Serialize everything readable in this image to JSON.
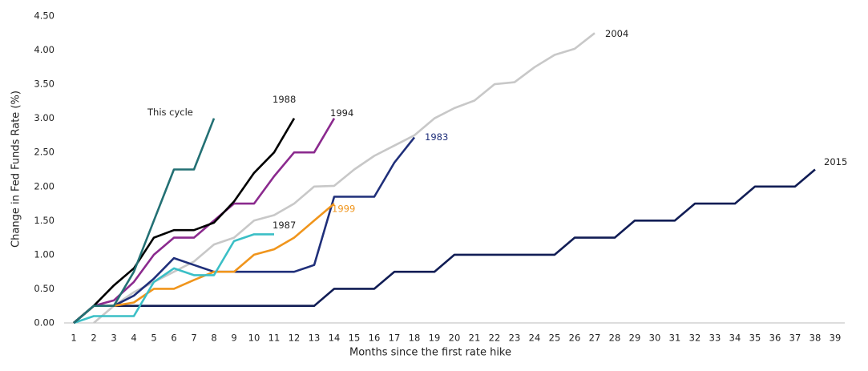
{
  "chart_data": {
    "type": "line",
    "y_label": "Change in Fed Funds Rate (%)",
    "x_label": "Months since the first rate hike",
    "x": [
      1,
      2,
      3,
      4,
      5,
      6,
      7,
      8,
      9,
      10,
      11,
      12,
      13,
      14,
      15,
      16,
      17,
      18,
      19,
      20,
      21,
      22,
      23,
      24,
      25,
      26,
      27,
      28,
      29,
      30,
      31,
      32,
      33,
      34,
      35,
      36,
      37,
      38,
      39
    ],
    "xlim": [
      1,
      39
    ],
    "xticks": [
      1,
      2,
      3,
      4,
      5,
      6,
      7,
      8,
      9,
      10,
      11,
      12,
      13,
      14,
      15,
      16,
      17,
      18,
      19,
      20,
      21,
      22,
      23,
      24,
      25,
      26,
      27,
      28,
      29,
      30,
      31,
      32,
      33,
      34,
      35,
      36,
      37,
      38,
      39
    ],
    "ylim": [
      0,
      4.5
    ],
    "yticks": [
      {
        "value": 0,
        "label": "0.00"
      },
      {
        "value": 0.5,
        "label": "0.50"
      },
      {
        "value": 1,
        "label": "1.00"
      },
      {
        "value": 1.5,
        "label": "1.50"
      },
      {
        "value": 2,
        "label": "2.00"
      },
      {
        "value": 2.5,
        "label": "2.50"
      },
      {
        "value": 3,
        "label": "3.00"
      },
      {
        "value": 3.5,
        "label": "3.50"
      },
      {
        "value": 4,
        "label": "4.00"
      },
      {
        "value": 4.5,
        "label": "4.50"
      }
    ],
    "grid": false,
    "series": [
      {
        "name": "2004",
        "color": "#c8c8c8",
        "values": [
          null,
          0,
          0.25,
          0.45,
          0.6,
          0.75,
          0.9,
          1.15,
          1.25,
          1.5,
          1.58,
          1.75,
          2.0,
          2.01,
          2.25,
          2.45,
          2.6,
          2.75,
          3.0,
          3.15,
          3.26,
          3.5,
          3.53,
          3.75,
          3.93,
          4.02,
          4.25,
          null,
          null,
          null,
          null,
          null,
          null,
          null,
          null,
          null,
          null,
          null,
          null
        ]
      },
      {
        "name": "2015",
        "color": "#111d55",
        "values": [
          0,
          0.25,
          0.25,
          0.25,
          0.25,
          0.25,
          0.25,
          0.25,
          0.25,
          0.25,
          0.25,
          0.25,
          0.25,
          0.5,
          0.5,
          0.5,
          0.75,
          0.75,
          0.75,
          1.0,
          1.0,
          1.0,
          1.0,
          1.0,
          1.0,
          1.25,
          1.25,
          1.25,
          1.5,
          1.5,
          1.5,
          1.75,
          1.75,
          1.75,
          2.0,
          2.0,
          2.0,
          2.25,
          null
        ]
      },
      {
        "name": "1983",
        "color": "#1f2f7a",
        "values": [
          0,
          0.25,
          0.25,
          0.4,
          0.65,
          0.95,
          0.85,
          0.75,
          0.75,
          0.75,
          0.75,
          0.75,
          0.85,
          1.85,
          1.85,
          1.85,
          2.35,
          2.72,
          null,
          null,
          null,
          null,
          null,
          null,
          null,
          null,
          null,
          null,
          null,
          null,
          null,
          null,
          null,
          null,
          null,
          null,
          null,
          null,
          null
        ]
      },
      {
        "name": "1999",
        "color": "#f0951c",
        "values": [
          0,
          0.25,
          0.25,
          0.3,
          0.5,
          0.5,
          0.63,
          0.75,
          0.75,
          1.0,
          1.08,
          1.25,
          1.5,
          1.75,
          null,
          null,
          null,
          null,
          null,
          null,
          null,
          null,
          null,
          null,
          null,
          null,
          null,
          null,
          null,
          null,
          null,
          null,
          null,
          null,
          null,
          null,
          null,
          null,
          null
        ]
      },
      {
        "name": "1987",
        "color": "#3bbfc6",
        "values": [
          0,
          0.1,
          0.1,
          0.1,
          0.6,
          0.8,
          0.7,
          0.7,
          1.2,
          1.3,
          1.3,
          null,
          null,
          null,
          null,
          null,
          null,
          null,
          null,
          null,
          null,
          null,
          null,
          null,
          null,
          null,
          null,
          null,
          null,
          null,
          null,
          null,
          null,
          null,
          null,
          null,
          null,
          null,
          null
        ]
      },
      {
        "name": "1994",
        "color": "#8b2a8e",
        "values": [
          0,
          0.25,
          0.33,
          0.6,
          1.0,
          1.25,
          1.25,
          1.5,
          1.75,
          1.75,
          2.15,
          2.5,
          2.5,
          3.0,
          null,
          null,
          null,
          null,
          null,
          null,
          null,
          null,
          null,
          null,
          null,
          null,
          null,
          null,
          null,
          null,
          null,
          null,
          null,
          null,
          null,
          null,
          null,
          null,
          null
        ]
      },
      {
        "name": "1988",
        "color": "#000000",
        "values": [
          0,
          0.25,
          0.55,
          0.8,
          1.25,
          1.36,
          1.36,
          1.47,
          1.78,
          2.2,
          2.5,
          3.0,
          null,
          null,
          null,
          null,
          null,
          null,
          null,
          null,
          null,
          null,
          null,
          null,
          null,
          null,
          null,
          null,
          null,
          null,
          null,
          null,
          null,
          null,
          null,
          null,
          null,
          null,
          null
        ]
      },
      {
        "name": "This cycle",
        "color": "#237074",
        "values": [
          0,
          0.25,
          0.25,
          0.75,
          1.5,
          2.25,
          2.25,
          3.0,
          null,
          null,
          null,
          null,
          null,
          null,
          null,
          null,
          null,
          null,
          null,
          null,
          null,
          null,
          null,
          null,
          null,
          null,
          null,
          null,
          null,
          null,
          null,
          null,
          null,
          null,
          null,
          null,
          null,
          null,
          null
        ]
      }
    ]
  }
}
